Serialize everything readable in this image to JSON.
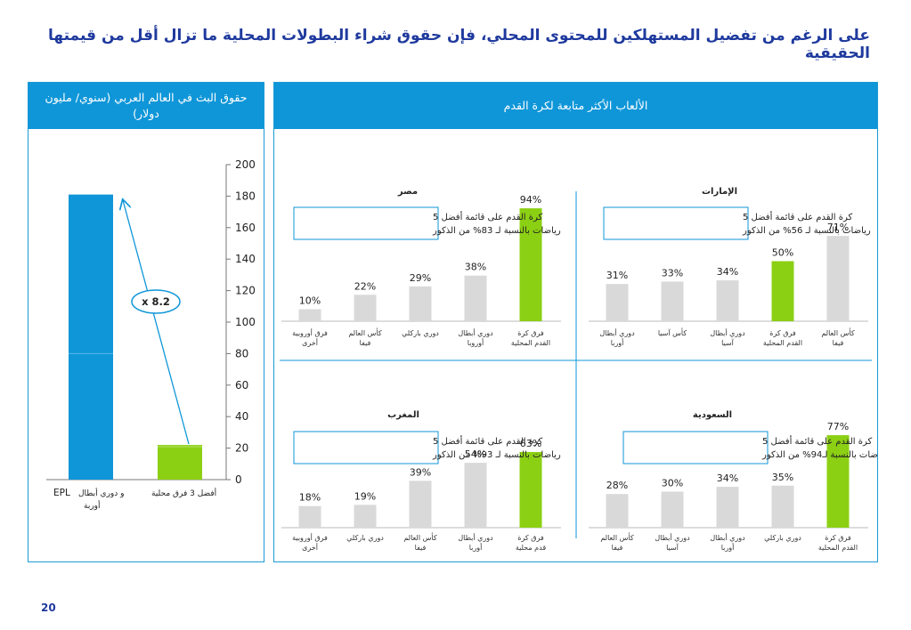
{
  "page": {
    "title": "على الرغم من تفضيل المستهلكين للمحتوى المحلي، فإن حقوق شراء البطولات المحلية ما تزال أقل من قيمتها الحقيقية",
    "page_number": "20"
  },
  "left_panel": {
    "header": "حقوق البث في العالم العربي (سنوي/ مليون دولار)"
  },
  "right_panel": {
    "header": "الألعاب الأكثر متابعة لكرة القدم"
  },
  "colors": {
    "accent_blue": "#0f96d8",
    "green": "#8cd014",
    "grey": "#d9d9d9",
    "title_blue": "#1f3a9e"
  },
  "chart_data": [
    {
      "id": "rights",
      "type": "bar",
      "categories": [
        "EPL و دوري أبطال أوربة",
        "أفضل 3 فرق محلية"
      ],
      "values": [
        181,
        22
      ],
      "ylim": [
        0,
        200
      ],
      "yticks": [
        0,
        20,
        40,
        60,
        80,
        100,
        120,
        140,
        160,
        180,
        200
      ],
      "annotation": "x 8.2"
    },
    {
      "id": "egypt",
      "type": "bar",
      "title": "مصر",
      "categories": [
        "فرق كرة القدم المحلية",
        "دوري أبطال أوروبا",
        "دوري باركلي",
        "كأس العالم فيفا",
        "فرق أوروبية أخرى"
      ],
      "values": [
        94,
        38,
        29,
        22,
        10
      ],
      "labels": [
        "94%",
        "38%",
        "29%",
        "22%",
        "10%"
      ],
      "highlight_index": 0,
      "note": [
        "كرة القدم على قائمة أفضل 5",
        "رياضات بالنسبة لـ 83% من الذكور"
      ]
    },
    {
      "id": "uae",
      "type": "bar",
      "title": "الإمارات",
      "categories": [
        "كأس العالم فيفا",
        "فرق كرة القدم المحلية",
        "دوري أبطال آسيا",
        "كأس آسيا",
        "دوري أبطال أوربا"
      ],
      "values": [
        71,
        50,
        34,
        33,
        31
      ],
      "labels": [
        "71%",
        "50%",
        "34%",
        "33%",
        "31%"
      ],
      "highlight_index": 1,
      "note": [
        "كرة القدم على قائمة أفضل 5",
        "رياضات بالنسبة لـ 56% من الذكور"
      ]
    },
    {
      "id": "morocco",
      "type": "bar",
      "title": "المغرب",
      "categories": [
        "فرق كرة قدم محلية",
        "دوري أبطال أوربا",
        "كأس العالم فيفا",
        "دوري باركلي",
        "فرق أوروبية أخرى"
      ],
      "values": [
        63,
        54,
        39,
        19,
        18
      ],
      "labels": [
        "63%",
        "54%",
        "39%",
        "19%",
        "18%"
      ],
      "highlight_index": 0,
      "note": [
        "كرة القدم على قائمة أفضل 5",
        "رياضات بالنسبة لـ 93% من الذكور"
      ]
    },
    {
      "id": "saudi",
      "type": "bar",
      "title": "السعودية",
      "categories": [
        "فرق كرة القدم المحلية",
        "دوري باركلي",
        "دوري أبطال أوربا",
        "دوري أبطال آسيا",
        "كأس العالم فيفا"
      ],
      "values": [
        77,
        35,
        34,
        30,
        28
      ],
      "labels": [
        "77%",
        "35%",
        "34%",
        "30%",
        "28%"
      ],
      "highlight_index": 0,
      "note": [
        "كرة القدم على قائمة أفضل 5",
        "رياضات بالنسبة لـ94% من الذكور"
      ]
    }
  ]
}
